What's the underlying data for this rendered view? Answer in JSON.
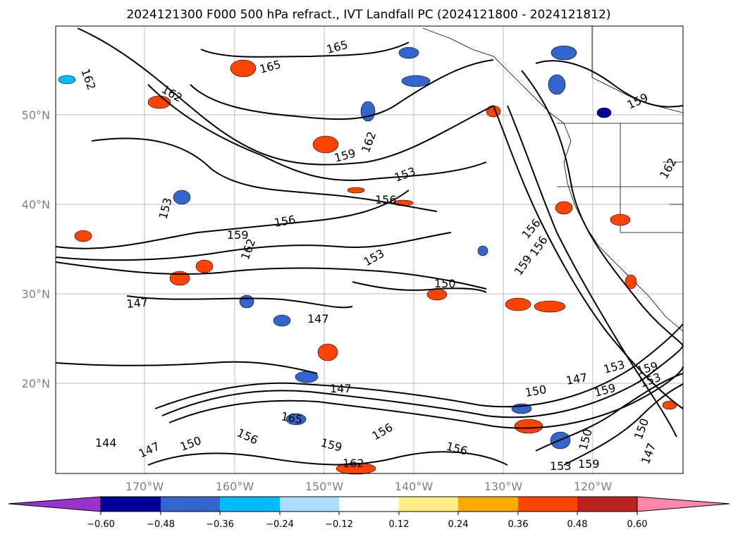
{
  "title": "2024121300 F000 500 hPa refract., IVT Landfall PC (2024121800 - 2024121812)",
  "lat_labels": [
    "50°N",
    "40°N",
    "30°N",
    "20°N"
  ],
  "lon_labels": [
    "170°W",
    "160°W",
    "150°W",
    "140°W",
    "130°W",
    "120°W"
  ],
  "colorbar": {
    "ticks": [
      "−0.60",
      "−0.48",
      "−0.36",
      "−0.24",
      "−0.12",
      "0.12",
      "0.24",
      "0.36",
      "0.48",
      "0.60"
    ],
    "colors": [
      "#9933cc",
      "#000099",
      "#3366cc",
      "#00bbff",
      "#aaddff",
      "#ffffff",
      "#ffee88",
      "#ffaa00",
      "#ff4400",
      "#bb2222",
      "#ff88aa"
    ]
  },
  "contour_labels": [
    "165",
    "165",
    "162",
    "162",
    "162",
    "159",
    "159",
    "162",
    "153",
    "156",
    "156",
    "153",
    "159",
    "162",
    "156",
    "153",
    "150",
    "156",
    "159",
    "147",
    "147",
    "147",
    "150",
    "147",
    "153",
    "159",
    "159",
    "153",
    "165",
    "156",
    "156",
    "159",
    "162",
    "156",
    "150",
    "147",
    "150",
    "153",
    "159",
    "144",
    "147",
    "150"
  ]
}
